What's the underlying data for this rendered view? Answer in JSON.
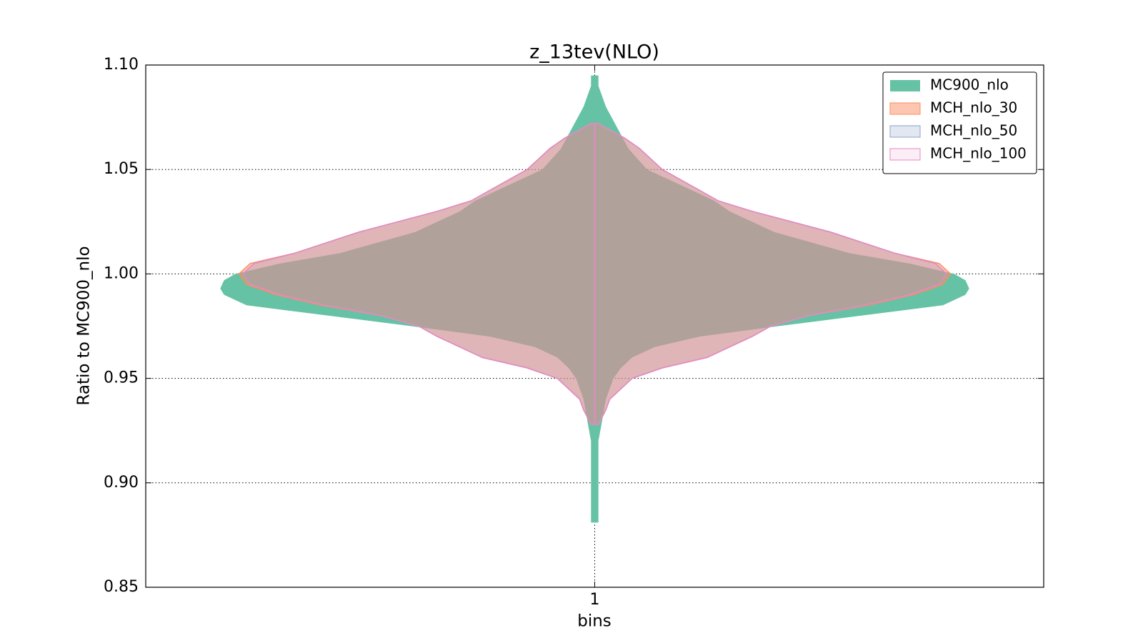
{
  "chart_data": {
    "type": "violin",
    "title": "z_13tev(NLO)",
    "xlabel": "bins",
    "ylabel": "Ratio to MC900_nlo",
    "categories": [
      "1"
    ],
    "ylim": [
      0.85,
      1.1
    ],
    "yticks": [
      {
        "value": 0.85,
        "label": "0.85"
      },
      {
        "value": 0.9,
        "label": "0.90"
      },
      {
        "value": 0.95,
        "label": "0.95"
      },
      {
        "value": 1.0,
        "label": "1.00"
      },
      {
        "value": 1.05,
        "label": "1.05"
      },
      {
        "value": 1.1,
        "label": "1.10"
      }
    ],
    "grid": true,
    "legend": "upper right",
    "series": [
      {
        "name": "MC900_nlo",
        "color": "#66c2a5",
        "alpha": 1.0,
        "y": [
          0.881,
          0.9,
          0.92,
          0.93,
          0.94,
          0.95,
          0.955,
          0.96,
          0.965,
          0.97,
          0.975,
          0.98,
          0.985,
          0.99,
          0.993,
          0.997,
          1.0,
          1.005,
          1.01,
          1.02,
          1.03,
          1.035,
          1.04,
          1.045,
          1.05,
          1.06,
          1.07,
          1.08,
          1.09,
          1.095
        ],
        "density": [
          0.01,
          0.01,
          0.01,
          0.02,
          0.03,
          0.05,
          0.07,
          0.1,
          0.16,
          0.28,
          0.49,
          0.71,
          0.93,
          0.99,
          1.0,
          0.99,
          0.96,
          0.84,
          0.68,
          0.48,
          0.36,
          0.32,
          0.26,
          0.2,
          0.14,
          0.09,
          0.06,
          0.03,
          0.01,
          0.01
        ]
      },
      {
        "name": "MCH_nlo_30",
        "color": "#fc8d62",
        "alpha": 0.5,
        "y": [
          0.928,
          0.935,
          0.94,
          0.95,
          0.955,
          0.96,
          0.965,
          0.97,
          0.975,
          0.98,
          0.985,
          0.99,
          0.995,
          1.0,
          1.005,
          1.01,
          1.02,
          1.03,
          1.035,
          1.04,
          1.05,
          1.06,
          1.065,
          1.072
        ],
        "density": [
          0.01,
          0.03,
          0.04,
          0.1,
          0.18,
          0.3,
          0.36,
          0.42,
          0.47,
          0.57,
          0.73,
          0.85,
          0.93,
          0.95,
          0.92,
          0.8,
          0.63,
          0.42,
          0.33,
          0.28,
          0.18,
          0.12,
          0.08,
          0.01
        ]
      },
      {
        "name": "MCH_nlo_50",
        "color": "#8da0cb",
        "alpha": 0.25,
        "y": [
          0.928,
          0.935,
          0.94,
          0.95,
          0.955,
          0.96,
          0.965,
          0.97,
          0.975,
          0.98,
          0.985,
          0.99,
          0.995,
          1.0,
          1.005,
          1.01,
          1.02,
          1.03,
          1.035,
          1.04,
          1.05,
          1.06,
          1.065,
          1.072
        ],
        "density": [
          0.01,
          0.03,
          0.04,
          0.1,
          0.18,
          0.3,
          0.36,
          0.42,
          0.47,
          0.57,
          0.72,
          0.84,
          0.92,
          0.94,
          0.91,
          0.8,
          0.63,
          0.42,
          0.33,
          0.28,
          0.18,
          0.12,
          0.08,
          0.01
        ]
      },
      {
        "name": "MCH_nlo_100",
        "color": "#e78ac3",
        "alpha": 0.15,
        "y": [
          0.928,
          0.935,
          0.94,
          0.95,
          0.955,
          0.96,
          0.965,
          0.97,
          0.975,
          0.98,
          0.985,
          0.99,
          0.995,
          1.0,
          1.005,
          1.01,
          1.02,
          1.03,
          1.035,
          1.04,
          1.05,
          1.06,
          1.065,
          1.072
        ],
        "density": [
          0.01,
          0.03,
          0.04,
          0.1,
          0.18,
          0.3,
          0.36,
          0.42,
          0.47,
          0.57,
          0.72,
          0.84,
          0.92,
          0.94,
          0.91,
          0.8,
          0.63,
          0.42,
          0.33,
          0.28,
          0.18,
          0.12,
          0.08,
          0.01
        ]
      }
    ]
  }
}
